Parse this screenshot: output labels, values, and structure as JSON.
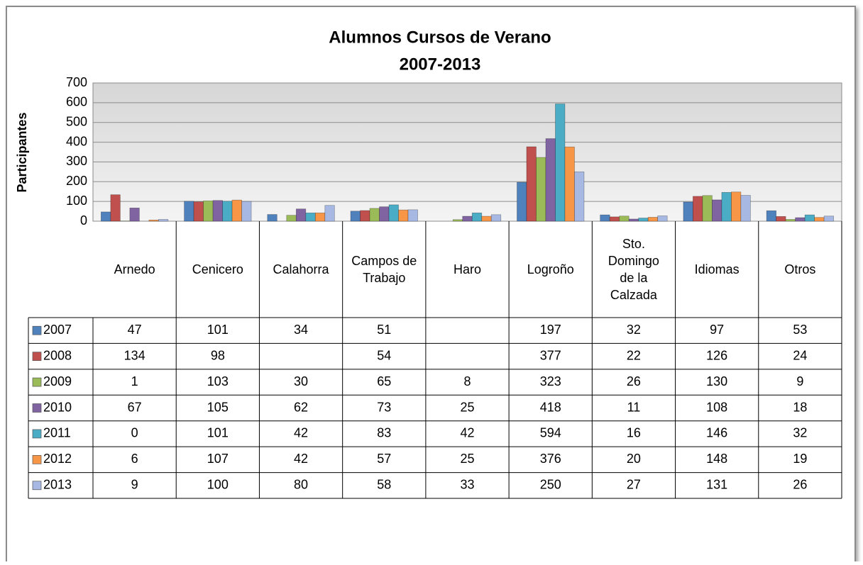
{
  "chart_data": {
    "type": "bar",
    "title": "Alumnos Cursos de Verano",
    "subtitle": "2007-2013",
    "y_label": "Participantes",
    "categories": [
      "Arnedo",
      "Cenicero",
      "Calahorra",
      "Campos de Trabajo",
      "Haro",
      "Logroño",
      "Sto. Domingo de la Calzada",
      "Idiomas",
      "Otros"
    ],
    "series": [
      {
        "name": "2007",
        "color": "#4f81bd",
        "values": [
          47,
          101,
          34,
          51,
          null,
          197,
          32,
          97,
          53
        ]
      },
      {
        "name": "2008",
        "color": "#c0504d",
        "values": [
          134,
          98,
          null,
          54,
          null,
          377,
          22,
          126,
          24
        ]
      },
      {
        "name": "2009",
        "color": "#9bbb59",
        "values": [
          1,
          103,
          30,
          65,
          8,
          323,
          26,
          130,
          9
        ]
      },
      {
        "name": "2010",
        "color": "#8064a2",
        "values": [
          67,
          105,
          62,
          73,
          25,
          418,
          11,
          108,
          18
        ]
      },
      {
        "name": "2011",
        "color": "#4bacc6",
        "values": [
          0,
          101,
          42,
          83,
          42,
          594,
          16,
          146,
          32
        ]
      },
      {
        "name": "2012",
        "color": "#f79646",
        "values": [
          6,
          107,
          42,
          57,
          25,
          376,
          20,
          148,
          19
        ]
      },
      {
        "name": "2013",
        "color": "#a7b9e3",
        "values": [
          9,
          100,
          80,
          58,
          33,
          250,
          27,
          131,
          26
        ]
      }
    ],
    "ylim": [
      0,
      700
    ],
    "yticks": [
      0,
      100,
      200,
      300,
      400,
      500,
      600,
      700
    ],
    "grid": true,
    "data_table": true
  }
}
